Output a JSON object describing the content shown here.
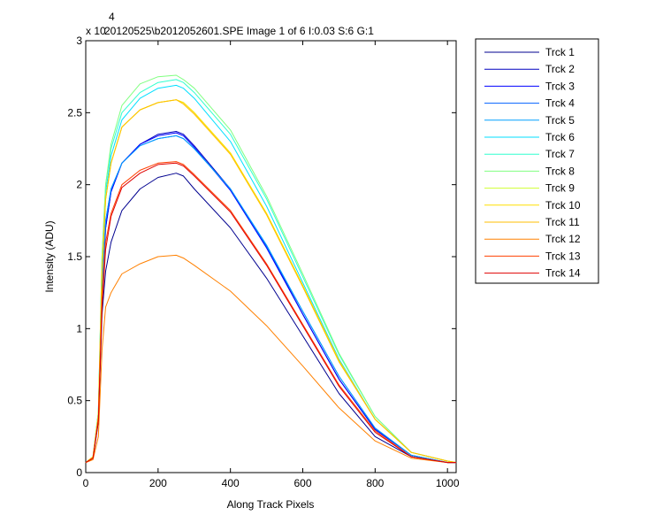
{
  "chart_data": {
    "type": "line",
    "title": "20120525\\b2012052601.SPE  Image 1 of 6  I:0.03  S:6  G:1",
    "multiplier": {
      "base": "x 10",
      "exponent": "4"
    },
    "xlabel": "Along Track Pixels",
    "ylabel": "Intensity (ADU)",
    "xlim": [
      0,
      1024
    ],
    "ylim": [
      0,
      3
    ],
    "xticks": [
      0,
      200,
      400,
      600,
      800,
      1000
    ],
    "yticks": [
      0,
      0.5,
      1,
      1.5,
      2,
      2.5,
      3
    ],
    "ytick_labels": [
      "0",
      "0.5",
      "1",
      "1.5",
      "2",
      "2.5",
      "3"
    ],
    "grid": false,
    "legend_position": "outside-right",
    "x": [
      0,
      20,
      35,
      45,
      55,
      70,
      100,
      150,
      200,
      250,
      270,
      300,
      400,
      500,
      600,
      700,
      800,
      900,
      1000,
      1024
    ],
    "series": [
      {
        "name": "Trck 1",
        "color": "#00008f",
        "values": [
          0.07,
          0.1,
          0.35,
          1.1,
          1.4,
          1.6,
          1.82,
          1.97,
          2.05,
          2.08,
          2.06,
          1.97,
          1.7,
          1.35,
          0.95,
          0.55,
          0.25,
          0.11,
          0.07,
          0.07
        ]
      },
      {
        "name": "Trck 2",
        "color": "#0000bf",
        "values": [
          0.07,
          0.1,
          0.38,
          1.25,
          1.7,
          1.95,
          2.15,
          2.28,
          2.35,
          2.37,
          2.35,
          2.27,
          1.97,
          1.57,
          1.1,
          0.65,
          0.3,
          0.12,
          0.07,
          0.07
        ]
      },
      {
        "name": "Trck 3",
        "color": "#0000ff",
        "values": [
          0.07,
          0.1,
          0.38,
          1.25,
          1.7,
          1.95,
          2.15,
          2.28,
          2.34,
          2.36,
          2.34,
          2.26,
          1.96,
          1.56,
          1.1,
          0.65,
          0.3,
          0.12,
          0.07,
          0.07
        ]
      },
      {
        "name": "Trck 4",
        "color": "#0060ff",
        "values": [
          0.07,
          0.1,
          0.38,
          1.3,
          1.75,
          1.97,
          2.15,
          2.27,
          2.32,
          2.34,
          2.32,
          2.25,
          1.97,
          1.57,
          1.12,
          0.67,
          0.31,
          0.12,
          0.07,
          0.07
        ]
      },
      {
        "name": "Trck 5",
        "color": "#00a0ff",
        "values": [
          0.07,
          0.1,
          0.38,
          1.3,
          1.75,
          1.97,
          2.15,
          2.27,
          2.32,
          2.34,
          2.32,
          2.25,
          1.97,
          1.58,
          1.12,
          0.67,
          0.31,
          0.12,
          0.07,
          0.07
        ]
      },
      {
        "name": "Trck 6",
        "color": "#00dfff",
        "values": [
          0.07,
          0.11,
          0.42,
          1.45,
          1.95,
          2.2,
          2.45,
          2.6,
          2.67,
          2.69,
          2.67,
          2.6,
          2.3,
          1.85,
          1.32,
          0.79,
          0.37,
          0.14,
          0.08,
          0.07
        ]
      },
      {
        "name": "Trck 7",
        "color": "#30ffcf",
        "values": [
          0.07,
          0.11,
          0.42,
          1.5,
          2.0,
          2.25,
          2.5,
          2.64,
          2.71,
          2.73,
          2.71,
          2.64,
          2.35,
          1.9,
          1.36,
          0.82,
          0.39,
          0.14,
          0.08,
          0.07
        ]
      },
      {
        "name": "Trck 8",
        "color": "#80ff80",
        "values": [
          0.07,
          0.11,
          0.42,
          1.5,
          2.0,
          2.28,
          2.55,
          2.7,
          2.75,
          2.76,
          2.73,
          2.67,
          2.38,
          1.92,
          1.38,
          0.83,
          0.39,
          0.14,
          0.08,
          0.07
        ]
      },
      {
        "name": "Trck 9",
        "color": "#cfff30",
        "values": [
          0.07,
          0.11,
          0.4,
          1.4,
          1.9,
          2.15,
          2.4,
          2.52,
          2.57,
          2.59,
          2.57,
          2.5,
          2.22,
          1.8,
          1.3,
          0.78,
          0.37,
          0.14,
          0.08,
          0.07
        ]
      },
      {
        "name": "Trck 10",
        "color": "#ffdf00",
        "values": [
          0.07,
          0.11,
          0.4,
          1.4,
          1.9,
          2.15,
          2.4,
          2.52,
          2.57,
          2.59,
          2.57,
          2.5,
          2.22,
          1.8,
          1.3,
          0.78,
          0.37,
          0.14,
          0.08,
          0.07
        ]
      },
      {
        "name": "Trck 11",
        "color": "#ffbf00",
        "values": [
          0.07,
          0.11,
          0.4,
          1.4,
          1.9,
          2.15,
          2.4,
          2.52,
          2.57,
          2.59,
          2.56,
          2.49,
          2.21,
          1.79,
          1.29,
          0.77,
          0.37,
          0.14,
          0.08,
          0.07
        ]
      },
      {
        "name": "Trck 12",
        "color": "#ff8000",
        "values": [
          0.07,
          0.09,
          0.25,
          0.85,
          1.15,
          1.25,
          1.38,
          1.45,
          1.5,
          1.51,
          1.49,
          1.44,
          1.26,
          1.02,
          0.74,
          0.45,
          0.22,
          0.1,
          0.07,
          0.07
        ]
      },
      {
        "name": "Trck 13",
        "color": "#ff4000",
        "values": [
          0.07,
          0.1,
          0.38,
          1.2,
          1.6,
          1.8,
          2.0,
          2.1,
          2.15,
          2.16,
          2.14,
          2.07,
          1.82,
          1.45,
          1.03,
          0.61,
          0.29,
          0.11,
          0.07,
          0.07
        ]
      },
      {
        "name": "Trck 14",
        "color": "#df0000",
        "values": [
          0.07,
          0.1,
          0.36,
          1.15,
          1.55,
          1.78,
          1.98,
          2.08,
          2.14,
          2.15,
          2.13,
          2.06,
          1.81,
          1.44,
          1.02,
          0.6,
          0.28,
          0.11,
          0.07,
          0.07
        ]
      }
    ]
  }
}
